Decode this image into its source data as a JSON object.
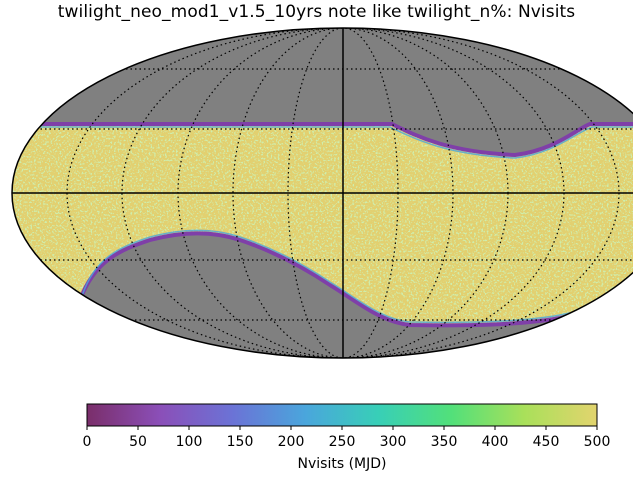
{
  "title": "twilight_neo_mod1_v1.5_10yrs note like twilight_n%: Nvisits",
  "colorbar": {
    "label": "Nvisits (MJD)",
    "min": 0,
    "max": 500,
    "ticks": [
      "0",
      "50",
      "100",
      "150",
      "200",
      "250",
      "300",
      "350",
      "400",
      "450",
      "500"
    ],
    "colors": [
      "#7a2e6a",
      "#8b4fb8",
      "#6b73d6",
      "#4aa6dc",
      "#38cfb7",
      "#52e07a",
      "#a9e05a",
      "#e2d46e"
    ]
  },
  "map": {
    "projection": "mollweide",
    "background_color": "#808080",
    "coverage_color": "#e2d070",
    "coverage_speckle_color": "#9fdc6a",
    "edge_color": "#7f3fa8",
    "coverage_value": 480
  }
}
